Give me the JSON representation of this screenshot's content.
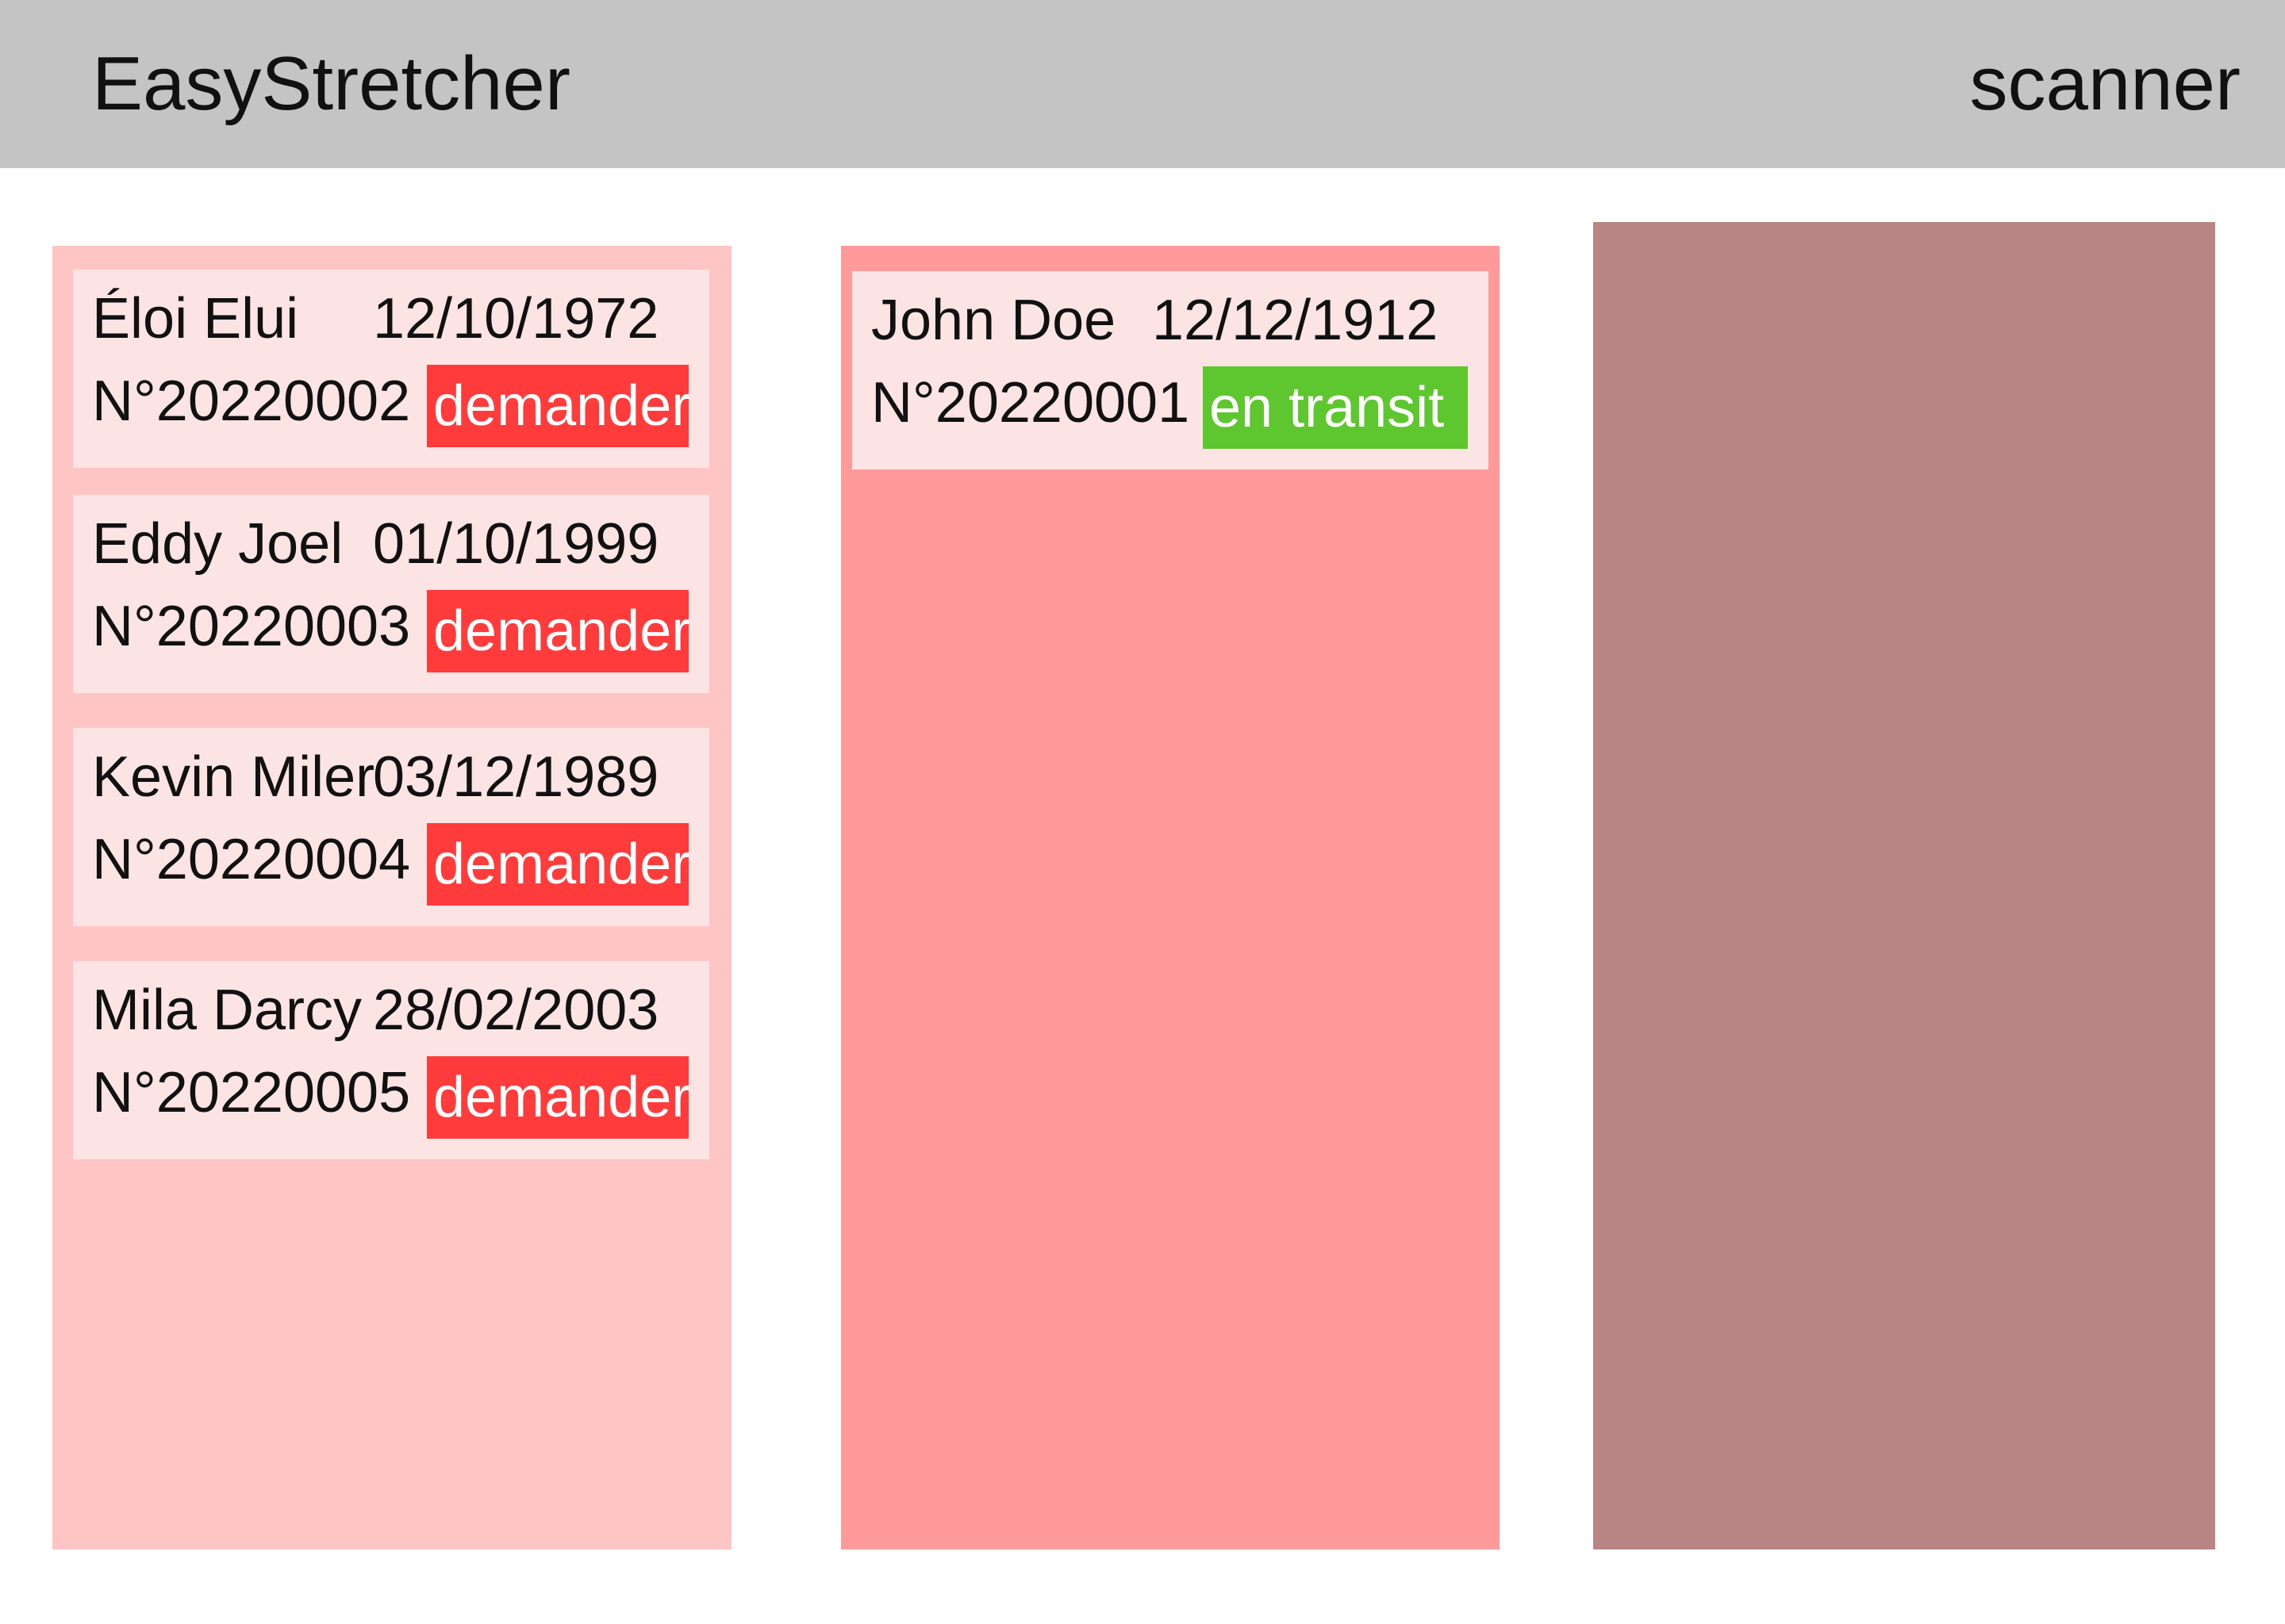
{
  "header": {
    "title": "EasyStretcher",
    "scanner_label": "scanner"
  },
  "columns": [
    {
      "cards": [
        {
          "name": "Éloi Elui",
          "date": "12/10/1972",
          "number": "N°20220002",
          "status": "demander"
        },
        {
          "name": "Eddy Joel",
          "date": "01/10/1999",
          "number": "N°20220003",
          "status": "demander"
        },
        {
          "name": "Kevin Miler",
          "date": "03/12/1989",
          "number": "N°20220004",
          "status": "demander"
        },
        {
          "name": "Mila Darcy",
          "date": "28/02/2003",
          "number": "N°20220005",
          "status": "demander"
        }
      ]
    },
    {
      "cards": [
        {
          "name": "John Doe",
          "date": "12/12/1912",
          "number": "N°20220001",
          "status": "en transit"
        }
      ]
    },
    {
      "cards": []
    }
  ],
  "colors": {
    "header_bg": "#c4c4c4",
    "column_1_bg": "#ffc4c4",
    "column_2_bg": "#ff9a9a",
    "column_3_bg": "#b98484",
    "card_bg": "#fde4e4",
    "status_demander": "#ff3b3b",
    "status_en_transit": "#5ec62e"
  }
}
